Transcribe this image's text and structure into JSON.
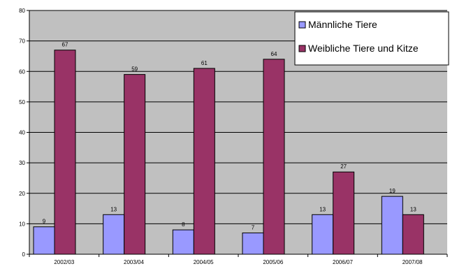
{
  "chart_data": {
    "type": "bar",
    "title": "",
    "xlabel": "",
    "ylabel": "",
    "categories": [
      "2002/03",
      "2003/04",
      "2004/05",
      "2005/06",
      "2006/07",
      "2007/08"
    ],
    "series": [
      {
        "name": "Männliche Tiere",
        "values": [
          9,
          13,
          8,
          7,
          13,
          19
        ],
        "color": "#9999ff"
      },
      {
        "name": "Weibliche Tiere und Kitze",
        "values": [
          67,
          59,
          61,
          64,
          27,
          13
        ],
        "color": "#993366"
      }
    ],
    "ylim": [
      0,
      80
    ],
    "yticks": [
      0,
      10,
      20,
      30,
      40,
      50,
      60,
      70,
      80
    ],
    "grid": true,
    "legend_position": "top-right",
    "plot_background": "#c0c0c0",
    "data_labels": true
  }
}
